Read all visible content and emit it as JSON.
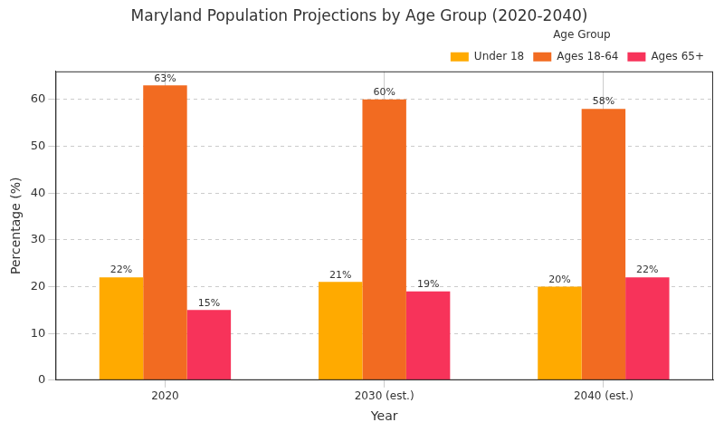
{
  "chart_data": {
    "type": "bar",
    "title": "Maryland Population Projections by Age Group (2020-2040)",
    "x_label": "Year",
    "y_label": "Percentage (%)",
    "categories": [
      "2020",
      "2030 (est.)",
      "2040 (est.)"
    ],
    "series": [
      {
        "name": "Under 18",
        "color": "#ffaa00",
        "values": [
          22,
          21,
          20
        ],
        "value_labels": [
          "22%",
          "21%",
          "20%"
        ]
      },
      {
        "name": "Ages 18-64",
        "color": "#f26b21",
        "values": [
          63,
          60,
          58
        ],
        "value_labels": [
          "63%",
          "60%",
          "58%"
        ]
      },
      {
        "name": "Ages 65+",
        "color": "#f7335a",
        "values": [
          15,
          19,
          22
        ],
        "value_labels": [
          "15%",
          "19%",
          "22%"
        ]
      }
    ],
    "ylim": [
      0,
      66
    ],
    "yticks": [
      0,
      10,
      20,
      30,
      40,
      50,
      60
    ],
    "grid": true,
    "legend": "upper right",
    "legend_title": "Age Group",
    "data_labels": true
  }
}
